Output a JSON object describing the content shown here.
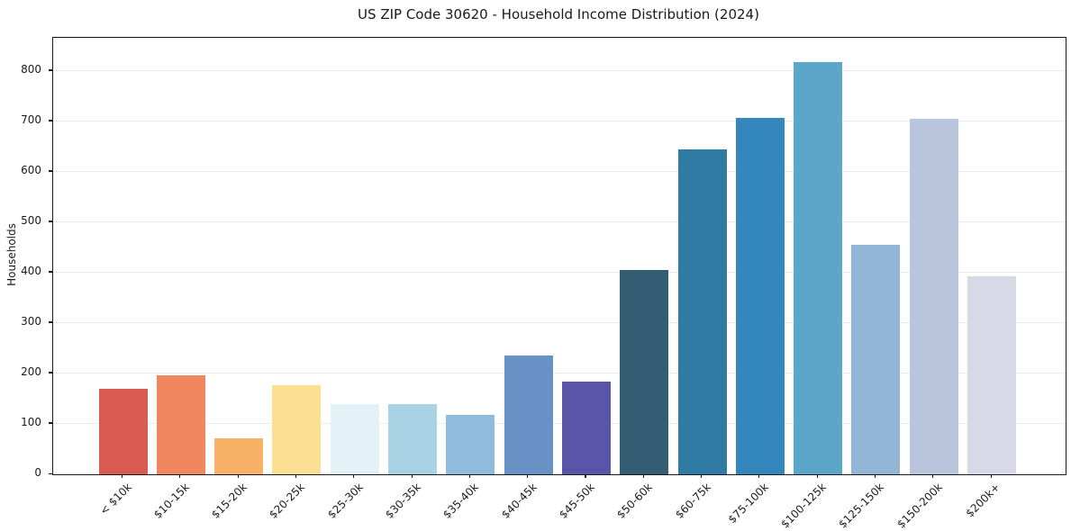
{
  "figure": {
    "title": "US ZIP Code 30620 - Household Income Distribution (2024)",
    "ylabel": "Households"
  },
  "chart_data": {
    "type": "bar",
    "title": "US ZIP Code 30620 - Household Income Distribution (2024)",
    "xlabel": "",
    "ylabel": "Households",
    "categories": [
      "< $10k",
      "$10-15k",
      "$15-20k",
      "$20-25k",
      "$25-30k",
      "$30-35k",
      "$35-40k",
      "$40-45k",
      "$45-50k",
      "$50-60k",
      "$60-75k",
      "$75-100k",
      "$100-125k",
      "$125-150k",
      "$150-200k",
      "$200k+"
    ],
    "values": [
      170,
      197,
      71,
      177,
      140,
      140,
      118,
      236,
      184,
      406,
      645,
      707,
      818,
      455,
      705,
      393
    ],
    "bar_colors": [
      "#d85c52",
      "#f0875f",
      "#f8b166",
      "#fcdf92",
      "#e3f2f6",
      "#aad2e5",
      "#8fbcdd",
      "#6892c6",
      "#5a55a8",
      "#335d72",
      "#2f7ba3",
      "#3487bd",
      "#5ba6c9",
      "#93b6d7",
      "#b9c6de",
      "#d7d9e6"
    ],
    "yticks": [
      0,
      100,
      200,
      300,
      400,
      500,
      600,
      700,
      800
    ],
    "ylim": [
      0,
      866
    ],
    "grid": "horizontal",
    "legend": "none",
    "background_color": "#ffffff",
    "gridline_color": "#ebebeb"
  }
}
